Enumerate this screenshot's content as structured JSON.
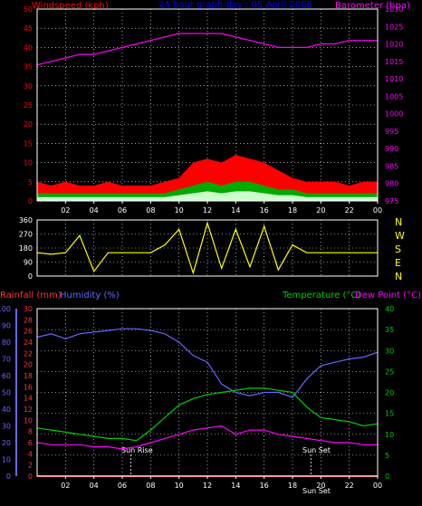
{
  "colors": {
    "background": "#000000",
    "frame": "#ffffff",
    "grid": "#ffffff",
    "wind_axis": "#ff0000",
    "baro_axis": "#ff00ff",
    "title": "#0000ff",
    "humidity": "#6666ff",
    "temperature": "#00cc00",
    "dewpoint": "#ff00ff",
    "rain_axis": "#ff3333",
    "wind_dir": "#ffff00",
    "gust": "#ff0000",
    "avg_wind": "#00aa00",
    "wind_low": "#ccffcc",
    "sun_line": "#cccccc"
  },
  "header": {
    "left_label": "Windspeed (kph)",
    "title": "24 hour graph day : 05 April 2006",
    "right_label": "Barometer (hpa)"
  },
  "panel_bottom_labels": {
    "rainfall": "Rainfall (mm)",
    "humidity": "Humidity (%)",
    "temperature": "Temperature (°C)",
    "dewpoint": "Dew Point (°C)"
  },
  "direction_labels": [
    "N",
    "W",
    "S",
    "E",
    "N"
  ],
  "x_tick_labels": [
    "02",
    "04",
    "06",
    "08",
    "10",
    "12",
    "14",
    "16",
    "18",
    "20",
    "22",
    "00"
  ],
  "sun_labels": {
    "rise": "Sun Rise",
    "set": "Sun Set",
    "set_bottom": "Sun Set"
  },
  "chart_data": [
    {
      "type": "area",
      "panel": "wind-barometer",
      "x_hours": [
        0,
        1,
        2,
        3,
        4,
        5,
        6,
        7,
        8,
        9,
        10,
        11,
        12,
        13,
        14,
        15,
        16,
        17,
        18,
        19,
        20,
        21,
        22,
        23,
        24
      ],
      "left_axis": {
        "label": "Windspeed (kph)",
        "ylim": [
          0,
          50
        ],
        "ticks": [
          0,
          5,
          10,
          15,
          20,
          25,
          30,
          35,
          40,
          45,
          50
        ]
      },
      "right_axis": {
        "label": "Barometer (hpa)",
        "ylim": [
          975,
          1030
        ],
        "ticks": [
          975,
          980,
          985,
          990,
          995,
          1000,
          1005,
          1010,
          1015,
          1020,
          1025,
          1030
        ]
      },
      "series": [
        {
          "values": [
            5,
            4,
            5,
            4,
            4,
            5,
            4,
            4,
            4,
            5,
            6,
            10,
            11,
            10,
            12,
            11,
            10,
            8,
            6,
            5,
            5,
            5,
            4,
            5,
            5
          ]
        },
        {
          "values": [
            2,
            2,
            2,
            2,
            2,
            2,
            2,
            2,
            2,
            2,
            3,
            4,
            5,
            4,
            5,
            5,
            4,
            3,
            3,
            2,
            2,
            2,
            2,
            2,
            2
          ]
        },
        {
          "values": [
            1014,
            1015,
            1016,
            1017,
            1017,
            1018,
            1019,
            1020,
            1021,
            1022,
            1023,
            1023,
            1023,
            1023,
            1022,
            1021,
            1020,
            1019,
            1019,
            1019,
            1020,
            1020,
            1021,
            1021,
            1021
          ]
        }
      ]
    },
    {
      "type": "scatter",
      "panel": "wind-direction",
      "ylim": [
        0,
        360
      ],
      "y_ticks": [
        0,
        90,
        180,
        270,
        360
      ],
      "x_hours": [
        0,
        1,
        2,
        3,
        4,
        5,
        6,
        7,
        8,
        9,
        10,
        11,
        12,
        13,
        14,
        15,
        16,
        17,
        18,
        19,
        20,
        21,
        22,
        23,
        24
      ],
      "values": [
        150,
        140,
        150,
        260,
        30,
        150,
        150,
        150,
        150,
        200,
        300,
        20,
        340,
        50,
        300,
        60,
        320,
        40,
        200,
        150,
        150,
        150,
        150,
        150,
        150
      ]
    },
    {
      "type": "line",
      "panel": "temperature-humidity",
      "x_hours": [
        0,
        1,
        2,
        3,
        4,
        5,
        6,
        7,
        8,
        9,
        10,
        11,
        12,
        13,
        14,
        15,
        16,
        17,
        18,
        19,
        20,
        21,
        22,
        23,
        24
      ],
      "axes": {
        "humidity": {
          "label": "Humidity (%)",
          "ylim": [
            0,
            100
          ],
          "ticks": [
            0,
            10,
            20,
            30,
            40,
            50,
            60,
            70,
            80,
            90,
            100
          ]
        },
        "rainfall": {
          "label": "Rainfall (mm)",
          "ylim": [
            0,
            30
          ],
          "ticks": [
            0,
            2,
            4,
            6,
            8,
            10,
            12,
            14,
            16,
            18,
            20,
            22,
            24,
            26,
            28,
            30
          ]
        },
        "temperature": {
          "label": "Temperature (°C)",
          "ylim": [
            0,
            40
          ],
          "ticks": [
            0,
            5,
            10,
            15,
            20,
            25,
            30,
            35,
            40
          ]
        }
      },
      "series": [
        {
          "axis": "humidity",
          "values": [
            83,
            85,
            82,
            85,
            86,
            87,
            88,
            88,
            87,
            85,
            80,
            72,
            68,
            55,
            50,
            48,
            50,
            50,
            47,
            58,
            66,
            68,
            70,
            71,
            74
          ]
        },
        {
          "axis": "temperature",
          "values": [
            11.5,
            11,
            10.5,
            10,
            9.5,
            9,
            9,
            8.5,
            11,
            14,
            17,
            18.5,
            19.5,
            20,
            20.5,
            21,
            21,
            20.5,
            20,
            16.5,
            14,
            13.5,
            13,
            12,
            12.5
          ]
        },
        {
          "axis": "temperature",
          "values": [
            8,
            7.5,
            7.5,
            7.5,
            7,
            7,
            6.5,
            7,
            8,
            9,
            10,
            11,
            11.5,
            12,
            10,
            11,
            11,
            10,
            9.5,
            9,
            8.5,
            8,
            8,
            7.5,
            7.5
          ]
        },
        {
          "axis": "rainfall",
          "values": [
            0,
            0,
            0,
            0,
            0,
            0,
            0,
            0,
            0,
            0,
            0,
            0,
            0,
            0,
            0,
            0,
            0,
            0,
            0,
            0,
            0,
            0,
            0,
            0,
            0
          ]
        }
      ],
      "annotations": {
        "sunrise_hour": 6.6,
        "sunset_hour": 19.3
      }
    }
  ]
}
